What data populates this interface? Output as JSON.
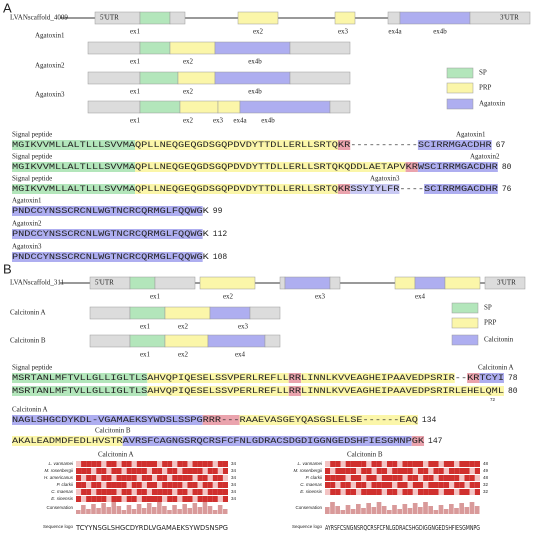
{
  "panel_a": {
    "label": "A",
    "gene": {
      "name": "LVANscaffold_4009",
      "utr5": "5'UTR",
      "utr3": "3'UTR",
      "exons": [
        "ex1",
        "ex2",
        "ex3",
        "ex4a",
        "ex4b"
      ]
    },
    "isoforms": [
      {
        "name": "Agatoxin1",
        "exons": [
          "ex1",
          "ex2",
          "ex4b"
        ]
      },
      {
        "name": "Agatoxin2",
        "exons": [
          "ex1",
          "ex2",
          "ex4b"
        ]
      },
      {
        "name": "Agatoxin3",
        "exons": [
          "ex1",
          "ex2",
          "ex3",
          "ex4a",
          "ex4b"
        ]
      }
    ],
    "legend": [
      {
        "label": "SP",
        "color": "#b3e6bb"
      },
      {
        "label": "PRP",
        "color": "#fbf6a9"
      },
      {
        "label": "Agatoxin",
        "color": "#aeaef0"
      }
    ],
    "alignment": [
      {
        "region": "Signal peptide",
        "name": "Agatoxin1",
        "length": 67,
        "segments": [
          {
            "text": "MGIKVVMLLALTLLLSVVMA",
            "color": "#b3e6bb"
          },
          {
            "text": "QPLLNEQGEQGDSGQPDVDYTTDLLERLLSRTQ",
            "color": "#fbf6a9"
          },
          {
            "text": "KR",
            "color": "#eaa3ad"
          },
          {
            "text": "-----------",
            "color": null
          },
          {
            "text": "SCIRRMGACDHR",
            "color": "#aeaef0"
          }
        ]
      },
      {
        "region": "Signal peptide",
        "name": "Agatoxin2",
        "length": 80,
        "segments": [
          {
            "text": "MGIKVVMLLALTLLLSVVMA",
            "color": "#b3e6bb"
          },
          {
            "text": "QPLLNEQGEQGDSGQPDVDYTTDLLERLLSRTQKQDDLAETAPV",
            "color": "#fbf6a9"
          },
          {
            "text": "KR",
            "color": "#eaa3ad"
          },
          {
            "text": "WSCIRRMGACDHR",
            "color": "#aeaef0"
          }
        ]
      },
      {
        "region": "Signal peptide",
        "name": "Agatoxin3",
        "length": 76,
        "segments": [
          {
            "text": "MGIKVVMLLALTLLLSVVMA",
            "color": "#b3e6bb"
          },
          {
            "text": "QPLLNEQGEQGDSGQPDVDYTTDLLERLLSRTQ",
            "color": "#fbf6a9"
          },
          {
            "text": "KR",
            "color": "#eaa3ad"
          },
          {
            "text": "SSYIYLFR",
            "color": "#c9c9f3"
          },
          {
            "text": "----",
            "color": null
          },
          {
            "text": "SCIRRMGACDHR",
            "color": "#aeaef0"
          }
        ]
      }
    ],
    "mature": [
      {
        "name": "Agatoxin1",
        "length": 99,
        "segments": [
          {
            "text": "PNDCCYNSSCRCNLWGTNCRCQRMGLFQQWG",
            "color": "#aeaef0"
          },
          {
            "text": "K",
            "color": null
          }
        ]
      },
      {
        "name": "Agatoxin2",
        "length": 112,
        "segments": [
          {
            "text": "PNDCCYNSSCRCNLWGTNCRCQRMGLFQQWG",
            "color": "#aeaef0"
          },
          {
            "text": "K",
            "color": null
          }
        ]
      },
      {
        "name": "Agatoxin3",
        "length": 108,
        "segments": [
          {
            "text": "PNDCCYNSSCRCNLWGTNCRCQRMGLFQQWG",
            "color": "#aeaef0"
          },
          {
            "text": "K",
            "color": null
          }
        ]
      }
    ]
  },
  "panel_b": {
    "label": "B",
    "gene": {
      "name": "LVANscaffold_311",
      "utr5": "5'UTR",
      "utr3": "3'UTR",
      "exons": [
        "ex1",
        "ex2",
        "ex3",
        "ex4"
      ]
    },
    "isoforms": [
      {
        "name": "Calcitonin A",
        "exons": [
          "ex1",
          "ex2",
          "ex3"
        ]
      },
      {
        "name": "Calcitonin B",
        "exons": [
          "ex1",
          "ex2",
          "ex4"
        ]
      }
    ],
    "legend": [
      {
        "label": "SP",
        "color": "#b3e6bb"
      },
      {
        "label": "PRP",
        "color": "#fbf6a9"
      },
      {
        "label": "Calcitonin",
        "color": "#aeaef0"
      }
    ],
    "alignment": [
      {
        "region": "Signal peptide",
        "name": "Calcitonin A",
        "length": 78,
        "segments": [
          {
            "text": "MSRTANLMFTVLLGLLIGLTLS",
            "color": "#b3e6bb"
          },
          {
            "text": "AHVQPIQESELSSVPERLREFLL",
            "color": "#fbf6a9"
          },
          {
            "text": "RR",
            "color": "#eaa3ad"
          },
          {
            "text": "LINNLKVVEAGHEIPAAVEDPSRIR",
            "color": "#fbf6a9"
          },
          {
            "text": "--",
            "color": null
          },
          {
            "text": "KR",
            "color": "#eaa3ad"
          },
          {
            "text": "TCYI",
            "color": "#aeaef0"
          }
        ]
      },
      {
        "region": null,
        "name": null,
        "length": 80,
        "marker": 72,
        "segments": [
          {
            "text": "MSRTANLMFTVLLGLLIGLTLS",
            "color": "#b3e6bb"
          },
          {
            "text": "AHVQPIQESELSSVPERLREFLL",
            "color": "#fbf6a9"
          },
          {
            "text": "RR",
            "color": "#eaa3ad"
          },
          {
            "text": "LINNLKVVEAGHEIPAAVEDPSRIRLEHELQML",
            "color": "#fbf6a9"
          }
        ]
      }
    ],
    "mature": [
      {
        "name": "Calcitonin A",
        "length": 134,
        "segments": [
          {
            "text": "NAGLSHGCDYKDL-VGAMAEKSYWDSLSSPG",
            "color": "#aeaef0"
          },
          {
            "text": "RRR---",
            "color": "#eaa3ad"
          },
          {
            "text": "RAAEVASGEYQASGSLELSE------EAQ",
            "color": "#fbf6a9"
          }
        ]
      },
      {
        "name": "Calcitonin B",
        "length": 147,
        "segments": [
          {
            "text": "AKALEADMDFEDLHVSTR",
            "color": "#fbf6a9"
          },
          {
            "text": "AVRSFCAGNGSRQCRSFCFNLGDRACSDGDIGGNGEDSHFIESGMNP",
            "color": "#aeaef0"
          },
          {
            "text": "GK",
            "color": "#eaa3ad"
          }
        ]
      }
    ],
    "msa": [
      {
        "title": "Calcitonin A",
        "species": [
          "L. vannamei",
          "M. rosenbergii",
          "H. americanus",
          "P. clarkii",
          "C. maenas",
          "E. sinensis"
        ],
        "lengths": [
          34,
          34,
          34,
          34,
          34,
          34
        ],
        "conservation": "Conservation",
        "logo_label": "Sequence logo",
        "logo": "TCYYNSGLSHGCDYRDLVGAMAEKSYWDSNSPG"
      },
      {
        "title": "Calcitonin B",
        "species": [
          "L. vannamei",
          "M. rosenbergii",
          "P. clarkii",
          "C. maenas",
          "E. sinensis"
        ],
        "lengths": [
          48,
          49,
          48,
          32,
          32
        ],
        "conservation": "Conservation",
        "logo_label": "Sequence logo",
        "logo": "AYRSFCSNGNSRQCRSFCFNLGDRACSHGDIGGNGEDSHFIESGMNPG"
      }
    ]
  }
}
